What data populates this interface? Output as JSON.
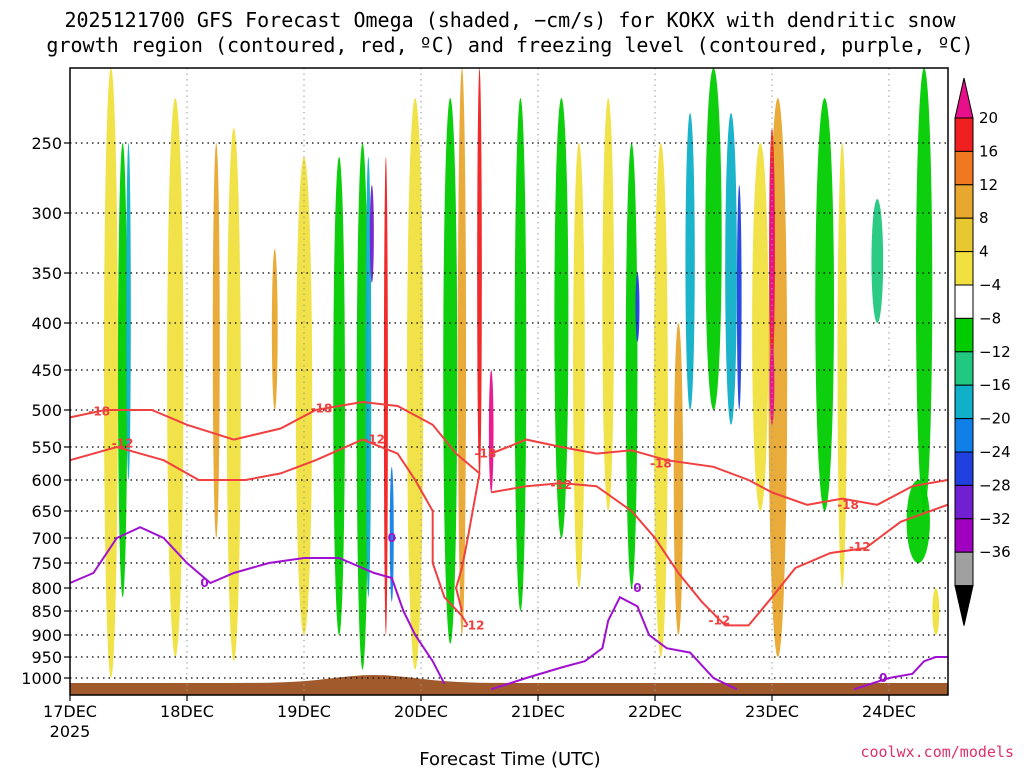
{
  "chart_data": {
    "type": "heatmap",
    "title_lines": [
      "2025121700 GFS Forecast Omega (shaded, −cm/s) for KOKX with dendritic snow",
      "growth region (contoured, red, ºC) and freezing level (contoured, purple, ºC)"
    ],
    "xlabel": "Forecast Time (UTC)",
    "credit": "coolwx.com/models",
    "x_ticks": [
      {
        "label": "17DEC",
        "sub": "2025",
        "day": 0
      },
      {
        "label": "18DEC",
        "sub": "",
        "day": 1
      },
      {
        "label": "19DEC",
        "sub": "",
        "day": 2
      },
      {
        "label": "20DEC",
        "sub": "",
        "day": 3
      },
      {
        "label": "21DEC",
        "sub": "",
        "day": 4
      },
      {
        "label": "22DEC",
        "sub": "",
        "day": 5
      },
      {
        "label": "23DEC",
        "sub": "",
        "day": 6
      },
      {
        "label": "24DEC",
        "sub": "",
        "day": 7
      }
    ],
    "x_range_days": [
      0,
      7.5
    ],
    "y_ticks_hpa": [
      250,
      300,
      350,
      400,
      450,
      500,
      550,
      600,
      650,
      700,
      750,
      800,
      850,
      900,
      950,
      1000
    ],
    "y_range_hpa": [
      200,
      1030
    ],
    "grid": true,
    "colorbar": {
      "labels": [
        "20",
        "16",
        "12",
        "8",
        "4",
        "−4",
        "−8",
        "−12",
        "−16",
        "−20",
        "−24",
        "−28",
        "−32",
        "−36"
      ],
      "colors": [
        "#f02020",
        "#f07820",
        "#e8a830",
        "#e8c830",
        "#f0e040",
        "#ffffff",
        "#00cc00",
        "#20c880",
        "#10b0c8",
        "#1080e8",
        "#2040e0",
        "#7020d0",
        "#a000c0",
        "#a0a0a0"
      ],
      "top_color": "#e8108a",
      "bottom_color": "#000000"
    },
    "shaded_features": [
      {
        "color": "#f0e040",
        "day": 0.35,
        "p_top": 200,
        "p_bot": 1000,
        "width_days": 0.12
      },
      {
        "color": "#00cc00",
        "day": 0.45,
        "p_top": 250,
        "p_bot": 820,
        "width_days": 0.08
      },
      {
        "color": "#10b0c8",
        "day": 0.5,
        "p_top": 250,
        "p_bot": 600,
        "width_days": 0.04
      },
      {
        "color": "#f0e040",
        "day": 0.9,
        "p_top": 220,
        "p_bot": 950,
        "width_days": 0.14
      },
      {
        "color": "#e8a830",
        "day": 1.25,
        "p_top": 250,
        "p_bot": 700,
        "width_days": 0.06
      },
      {
        "color": "#f0e040",
        "day": 1.4,
        "p_top": 240,
        "p_bot": 960,
        "width_days": 0.12
      },
      {
        "color": "#e8a830",
        "day": 1.75,
        "p_top": 330,
        "p_bot": 500,
        "width_days": 0.05
      },
      {
        "color": "#f0e040",
        "day": 2.0,
        "p_top": 260,
        "p_bot": 900,
        "width_days": 0.14
      },
      {
        "color": "#00cc00",
        "day": 2.3,
        "p_top": 260,
        "p_bot": 900,
        "width_days": 0.1
      },
      {
        "color": "#00cc00",
        "day": 2.5,
        "p_top": 250,
        "p_bot": 980,
        "width_days": 0.1
      },
      {
        "color": "#10b0c8",
        "day": 2.55,
        "p_top": 260,
        "p_bot": 820,
        "width_days": 0.05
      },
      {
        "color": "#7020d0",
        "day": 2.58,
        "p_top": 280,
        "p_bot": 360,
        "width_days": 0.025
      },
      {
        "color": "#f02020",
        "day": 2.7,
        "p_top": 260,
        "p_bot": 900,
        "width_days": 0.03
      },
      {
        "color": "#1080e8",
        "day": 2.75,
        "p_top": 580,
        "p_bot": 830,
        "width_days": 0.03
      },
      {
        "color": "#f0e040",
        "day": 2.95,
        "p_top": 220,
        "p_bot": 980,
        "width_days": 0.14
      },
      {
        "color": "#00cc00",
        "day": 3.25,
        "p_top": 220,
        "p_bot": 920,
        "width_days": 0.12
      },
      {
        "color": "#e8a830",
        "day": 3.35,
        "p_top": 200,
        "p_bot": 900,
        "width_days": 0.07
      },
      {
        "color": "#f02020",
        "day": 3.5,
        "p_top": 200,
        "p_bot": 600,
        "width_days": 0.04
      },
      {
        "color": "#e8108a",
        "day": 3.6,
        "p_top": 450,
        "p_bot": 620,
        "width_days": 0.04
      },
      {
        "color": "#00cc00",
        "day": 3.85,
        "p_top": 220,
        "p_bot": 850,
        "width_days": 0.1
      },
      {
        "color": "#00cc00",
        "day": 4.2,
        "p_top": 220,
        "p_bot": 700,
        "width_days": 0.12
      },
      {
        "color": "#f0e040",
        "day": 4.35,
        "p_top": 250,
        "p_bot": 800,
        "width_days": 0.1
      },
      {
        "color": "#f0e040",
        "day": 4.6,
        "p_top": 220,
        "p_bot": 650,
        "width_days": 0.1
      },
      {
        "color": "#00cc00",
        "day": 4.8,
        "p_top": 250,
        "p_bot": 800,
        "width_days": 0.1
      },
      {
        "color": "#2040e0",
        "day": 4.85,
        "p_top": 350,
        "p_bot": 420,
        "width_days": 0.03
      },
      {
        "color": "#f0e040",
        "day": 5.05,
        "p_top": 250,
        "p_bot": 950,
        "width_days": 0.12
      },
      {
        "color": "#e8a830",
        "day": 5.2,
        "p_top": 400,
        "p_bot": 900,
        "width_days": 0.08
      },
      {
        "color": "#10b0c8",
        "day": 5.3,
        "p_top": 230,
        "p_bot": 500,
        "width_days": 0.08
      },
      {
        "color": "#00cc00",
        "day": 5.5,
        "p_top": 200,
        "p_bot": 500,
        "width_days": 0.14
      },
      {
        "color": "#10b0c8",
        "day": 5.65,
        "p_top": 230,
        "p_bot": 520,
        "width_days": 0.1
      },
      {
        "color": "#2040e0",
        "day": 5.72,
        "p_top": 280,
        "p_bot": 500,
        "width_days": 0.04
      },
      {
        "color": "#f0e040",
        "day": 5.9,
        "p_top": 250,
        "p_bot": 650,
        "width_days": 0.14
      },
      {
        "color": "#e8a830",
        "day": 6.05,
        "p_top": 220,
        "p_bot": 950,
        "width_days": 0.16
      },
      {
        "color": "#f02020",
        "day": 6.0,
        "p_top": 240,
        "p_bot": 450,
        "width_days": 0.05
      },
      {
        "color": "#e8108a",
        "day": 6.0,
        "p_top": 260,
        "p_bot": 420,
        "width_days": 0.04
      },
      {
        "color": "#e8108a",
        "day": 6.0,
        "p_top": 420,
        "p_bot": 520,
        "width_days": 0.04
      },
      {
        "color": "#00cc00",
        "day": 6.45,
        "p_top": 220,
        "p_bot": 650,
        "width_days": 0.16
      },
      {
        "color": "#f0e040",
        "day": 6.6,
        "p_top": 250,
        "p_bot": 800,
        "width_days": 0.08
      },
      {
        "color": "#20c880",
        "day": 6.9,
        "p_top": 290,
        "p_bot": 400,
        "width_days": 0.1
      },
      {
        "color": "#00cc00",
        "day": 7.3,
        "p_top": 200,
        "p_bot": 650,
        "width_days": 0.14
      },
      {
        "color": "#00cc00",
        "day": 7.25,
        "p_top": 600,
        "p_bot": 750,
        "width_days": 0.2
      },
      {
        "color": "#f0e040",
        "day": 7.4,
        "p_top": 800,
        "p_bot": 900,
        "width_days": 0.06
      }
    ],
    "contours": [
      {
        "label": "-18",
        "color": "#f04040",
        "points": [
          [
            0,
            510
          ],
          [
            0.3,
            500
          ],
          [
            0.7,
            500
          ],
          [
            1.0,
            520
          ],
          [
            1.4,
            540
          ],
          [
            1.8,
            525
          ],
          [
            2.1,
            500
          ],
          [
            2.5,
            490
          ],
          [
            2.8,
            495
          ],
          [
            3.1,
            520
          ],
          [
            3.3,
            560
          ],
          [
            3.5,
            590
          ],
          [
            3.4,
            700
          ],
          [
            3.35,
            760
          ],
          [
            3.3,
            800
          ],
          [
            3.35,
            850
          ]
        ],
        "label_positions": [
          [
            0.25,
            502
          ],
          [
            2.15,
            498
          ],
          [
            3.55,
            560
          ]
        ]
      },
      {
        "label": "-12",
        "color": "#f04040",
        "points": [
          [
            0,
            570
          ],
          [
            0.4,
            550
          ],
          [
            0.8,
            570
          ],
          [
            1.1,
            600
          ],
          [
            1.5,
            600
          ],
          [
            1.8,
            590
          ],
          [
            2.1,
            570
          ],
          [
            2.5,
            540
          ],
          [
            2.8,
            560
          ],
          [
            2.95,
            600
          ],
          [
            3.1,
            650
          ],
          [
            3.1,
            750
          ],
          [
            3.2,
            820
          ],
          [
            3.35,
            860
          ],
          [
            3.4,
            880
          ]
        ],
        "label_positions": [
          [
            0.45,
            545
          ],
          [
            2.6,
            540
          ],
          [
            3.45,
            880
          ]
        ]
      },
      {
        "label": "-18",
        "color": "#f04040",
        "points": [
          [
            3.6,
            560
          ],
          [
            3.9,
            540
          ],
          [
            4.2,
            550
          ],
          [
            4.5,
            560
          ],
          [
            4.8,
            555
          ],
          [
            5.1,
            570
          ],
          [
            5.5,
            580
          ],
          [
            5.8,
            600
          ],
          [
            6.0,
            620
          ],
          [
            6.3,
            640
          ],
          [
            6.6,
            630
          ],
          [
            6.9,
            640
          ],
          [
            7.2,
            610
          ],
          [
            7.5,
            600
          ]
        ],
        "label_positions": [
          [
            5.05,
            575
          ],
          [
            6.65,
            640
          ]
        ]
      },
      {
        "label": "-12",
        "color": "#f04040",
        "points": [
          [
            3.6,
            620
          ],
          [
            3.9,
            610
          ],
          [
            4.2,
            605
          ],
          [
            4.5,
            610
          ],
          [
            4.8,
            650
          ],
          [
            5.0,
            700
          ],
          [
            5.2,
            770
          ],
          [
            5.4,
            830
          ],
          [
            5.6,
            880
          ],
          [
            5.8,
            880
          ],
          [
            6.0,
            820
          ],
          [
            6.2,
            760
          ],
          [
            6.5,
            730
          ],
          [
            6.8,
            720
          ],
          [
            7.1,
            670
          ],
          [
            7.5,
            640
          ]
        ],
        "label_positions": [
          [
            4.2,
            608
          ],
          [
            5.55,
            870
          ],
          [
            6.75,
            718
          ]
        ]
      },
      {
        "label": "0",
        "color": "#a010d0",
        "points": [
          [
            0,
            790
          ],
          [
            0.2,
            770
          ],
          [
            0.4,
            700
          ],
          [
            0.6,
            680
          ],
          [
            0.8,
            700
          ],
          [
            1.0,
            750
          ],
          [
            1.2,
            790
          ],
          [
            1.4,
            770
          ],
          [
            1.7,
            750
          ],
          [
            2.0,
            740
          ],
          [
            2.3,
            740
          ],
          [
            2.6,
            770
          ],
          [
            2.75,
            780
          ],
          [
            2.85,
            850
          ],
          [
            2.95,
            900
          ],
          [
            3.1,
            960
          ],
          [
            3.2,
            1010
          ]
        ],
        "label_positions": [
          [
            1.15,
            790
          ],
          [
            2.75,
            700
          ]
        ]
      },
      {
        "label": "0",
        "color": "#a010d0",
        "points": [
          [
            3.6,
            1020
          ],
          [
            3.9,
            1000
          ],
          [
            4.2,
            975
          ],
          [
            4.4,
            960
          ],
          [
            4.55,
            930
          ],
          [
            4.6,
            870
          ],
          [
            4.7,
            820
          ],
          [
            4.85,
            840
          ],
          [
            4.95,
            900
          ],
          [
            5.1,
            930
          ],
          [
            5.3,
            940
          ],
          [
            5.5,
            1000
          ],
          [
            5.7,
            1020
          ]
        ],
        "label_positions": [
          [
            4.85,
            800
          ],
          [
            6.95,
            1000
          ]
        ]
      },
      {
        "label": "0",
        "color": "#a010d0",
        "points": [
          [
            6.7,
            1020
          ],
          [
            7.0,
            1000
          ],
          [
            7.2,
            990
          ],
          [
            7.3,
            960
          ],
          [
            7.4,
            950
          ],
          [
            7.5,
            950
          ]
        ],
        "label_positions": []
      }
    ],
    "terrain_color": "#a05a2c"
  }
}
